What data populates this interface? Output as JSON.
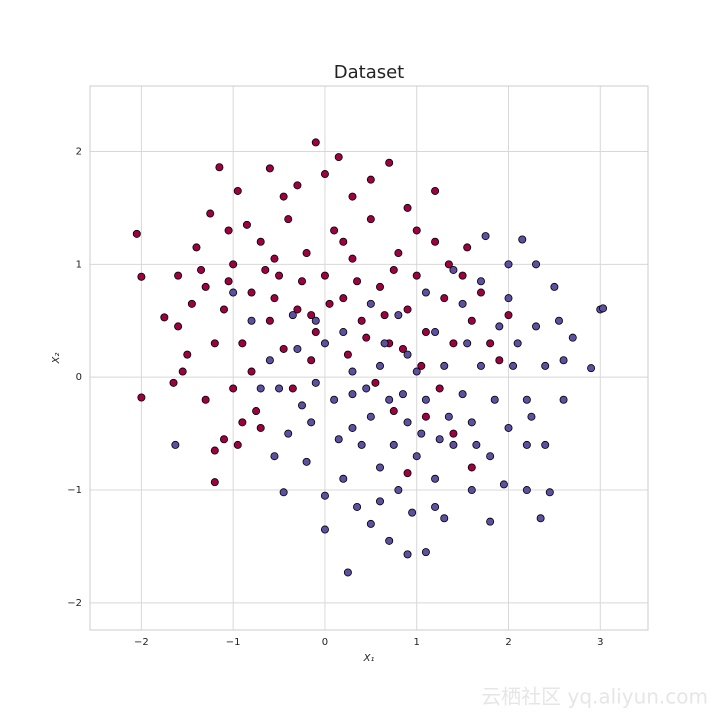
{
  "chart_data": {
    "type": "scatter",
    "title": "Dataset",
    "xlabel": "X₁",
    "ylabel": "X₂",
    "xlim": [
      -2.56,
      3.52
    ],
    "ylim": [
      -2.24,
      2.58
    ],
    "xticks": [
      {
        "value": -2,
        "label": "−2"
      },
      {
        "value": -1,
        "label": "−1"
      },
      0,
      1,
      2,
      3
    ],
    "yticks": [
      {
        "value": -2,
        "label": "−2"
      },
      {
        "value": -1,
        "label": "−1"
      },
      0,
      1,
      2
    ],
    "grid": true,
    "series": [
      {
        "color": "#9e0142",
        "x": [
          -2.05,
          -2.0,
          -2.0,
          -0.1,
          -1.2,
          0.7,
          1.2,
          -1.15,
          -1.75,
          -1.6,
          -1.4,
          -1.3,
          -1.1,
          -1.0,
          -0.9,
          -0.8,
          -0.7,
          -0.6,
          -0.5,
          -0.4,
          -0.3,
          -0.2,
          -0.1,
          0.0,
          0.1,
          0.2,
          0.3,
          0.4,
          0.5,
          0.6,
          0.7,
          0.8,
          0.9,
          1.0,
          1.1,
          1.2,
          1.3,
          1.4,
          1.5,
          1.6,
          1.7,
          1.8,
          -1.5,
          -1.3,
          -1.1,
          -0.9,
          -0.8,
          -1.0,
          -0.7,
          -1.2,
          -1.45,
          -1.25,
          -0.95,
          -0.6,
          -0.3,
          0.0,
          0.3,
          0.5,
          0.9,
          1.0,
          -0.85,
          -0.55,
          -0.25,
          0.05,
          0.35,
          0.65,
          0.85,
          1.05,
          1.25,
          0.55,
          0.25,
          -0.15,
          -0.45,
          -0.65,
          -1.05,
          -1.35,
          -1.55,
          -1.65,
          -1.2,
          -0.95,
          -0.75,
          -0.35,
          1.6,
          0.9,
          1.4,
          1.1,
          0.75,
          1.9,
          2.0,
          1.55,
          1.35,
          0.15,
          -0.45,
          -1.05,
          -1.6,
          -0.15,
          0.45,
          0.75,
          -0.55,
          0.2
        ],
        "y": [
          1.27,
          0.89,
          -0.18,
          2.08,
          -0.93,
          1.9,
          1.65,
          1.86,
          0.53,
          0.45,
          1.15,
          0.8,
          0.6,
          1.0,
          0.3,
          0.75,
          1.2,
          0.5,
          0.9,
          1.4,
          0.6,
          1.1,
          0.4,
          0.9,
          1.3,
          0.7,
          1.05,
          0.5,
          1.4,
          0.8,
          0.3,
          1.1,
          0.6,
          0.9,
          0.4,
          1.2,
          0.7,
          0.3,
          0.9,
          0.5,
          0.75,
          0.3,
          0.2,
          -0.2,
          -0.55,
          -0.4,
          0.05,
          -0.1,
          -0.45,
          0.3,
          0.65,
          1.45,
          1.65,
          1.85,
          1.7,
          1.8,
          1.6,
          1.75,
          1.5,
          1.3,
          1.35,
          1.05,
          0.85,
          0.65,
          0.85,
          0.55,
          0.25,
          0.1,
          -0.1,
          -0.05,
          0.2,
          0.15,
          0.25,
          0.95,
          0.85,
          0.95,
          0.05,
          -0.05,
          -0.65,
          -0.6,
          -0.3,
          -0.1,
          -0.8,
          -0.85,
          -0.5,
          -0.35,
          -0.3,
          0.15,
          0.55,
          1.15,
          1.0,
          1.95,
          1.6,
          1.3,
          0.9,
          0.55,
          0.35,
          0.95,
          0.7,
          1.2
        ]
      },
      {
        "color": "#5e4fa2",
        "x": [
          0.25,
          3.0,
          3.03,
          2.9,
          -1.63,
          2.35,
          0.9,
          1.1,
          0.0,
          2.15,
          0.7,
          0.5,
          1.3,
          1.8,
          2.2,
          2.4,
          2.6,
          2.7,
          2.5,
          2.3,
          2.0,
          1.75,
          1.5,
          1.2,
          0.9,
          0.6,
          0.3,
          0.0,
          -0.3,
          -0.5,
          -0.4,
          -0.2,
          0.0,
          0.2,
          0.4,
          0.6,
          0.8,
          1.0,
          1.2,
          1.4,
          1.6,
          1.8,
          2.0,
          2.2,
          2.4,
          2.1,
          1.9,
          1.7,
          1.5,
          1.3,
          1.1,
          0.9,
          0.7,
          0.5,
          0.3,
          0.1,
          -0.1,
          -0.6,
          -0.8,
          -1.0,
          -0.45,
          -0.55,
          -0.7,
          -0.35,
          -0.1,
          0.2,
          0.5,
          0.8,
          1.1,
          1.4,
          1.7,
          2.0,
          2.3,
          2.55,
          2.2,
          1.95,
          1.6,
          1.2,
          0.95,
          0.6,
          0.35,
          0.15,
          -0.15,
          0.45,
          0.75,
          1.05,
          1.35,
          1.65,
          1.85,
          2.05,
          2.25,
          2.45,
          2.6,
          1.55,
          1.0,
          0.65,
          0.3,
          -0.25,
          0.85,
          1.25
        ],
        "y": [
          -1.73,
          0.6,
          0.61,
          0.08,
          -0.6,
          -1.25,
          -1.57,
          -1.55,
          -1.35,
          1.22,
          -1.45,
          -1.3,
          -1.25,
          -1.28,
          -1.0,
          -0.6,
          -0.2,
          0.35,
          0.8,
          1.0,
          1.0,
          1.25,
          0.65,
          0.4,
          0.2,
          0.1,
          0.05,
          0.3,
          0.25,
          -0.1,
          -0.5,
          -0.75,
          -1.05,
          -0.9,
          -0.6,
          -0.8,
          -1.0,
          -0.7,
          -0.9,
          -0.6,
          -0.4,
          -0.7,
          -0.45,
          -0.2,
          0.1,
          0.3,
          0.45,
          0.1,
          -0.15,
          0.1,
          -0.2,
          -0.4,
          -0.2,
          -0.35,
          -0.45,
          -0.2,
          -0.05,
          0.15,
          0.5,
          0.75,
          -1.02,
          -0.7,
          -0.1,
          0.55,
          0.5,
          0.4,
          0.65,
          0.55,
          0.75,
          0.95,
          0.85,
          0.7,
          0.45,
          0.5,
          -0.6,
          -0.95,
          -1.0,
          -1.15,
          -1.2,
          -1.1,
          -1.15,
          -0.55,
          -0.4,
          -0.1,
          -0.6,
          -0.5,
          -0.35,
          -0.6,
          -0.2,
          0.1,
          -0.35,
          -1.02,
          0.15,
          0.3,
          0.05,
          0.3,
          -0.15,
          -0.25,
          -0.15,
          -0.55
        ]
      }
    ]
  },
  "watermark": "云栖社区 yq.aliyun.com"
}
